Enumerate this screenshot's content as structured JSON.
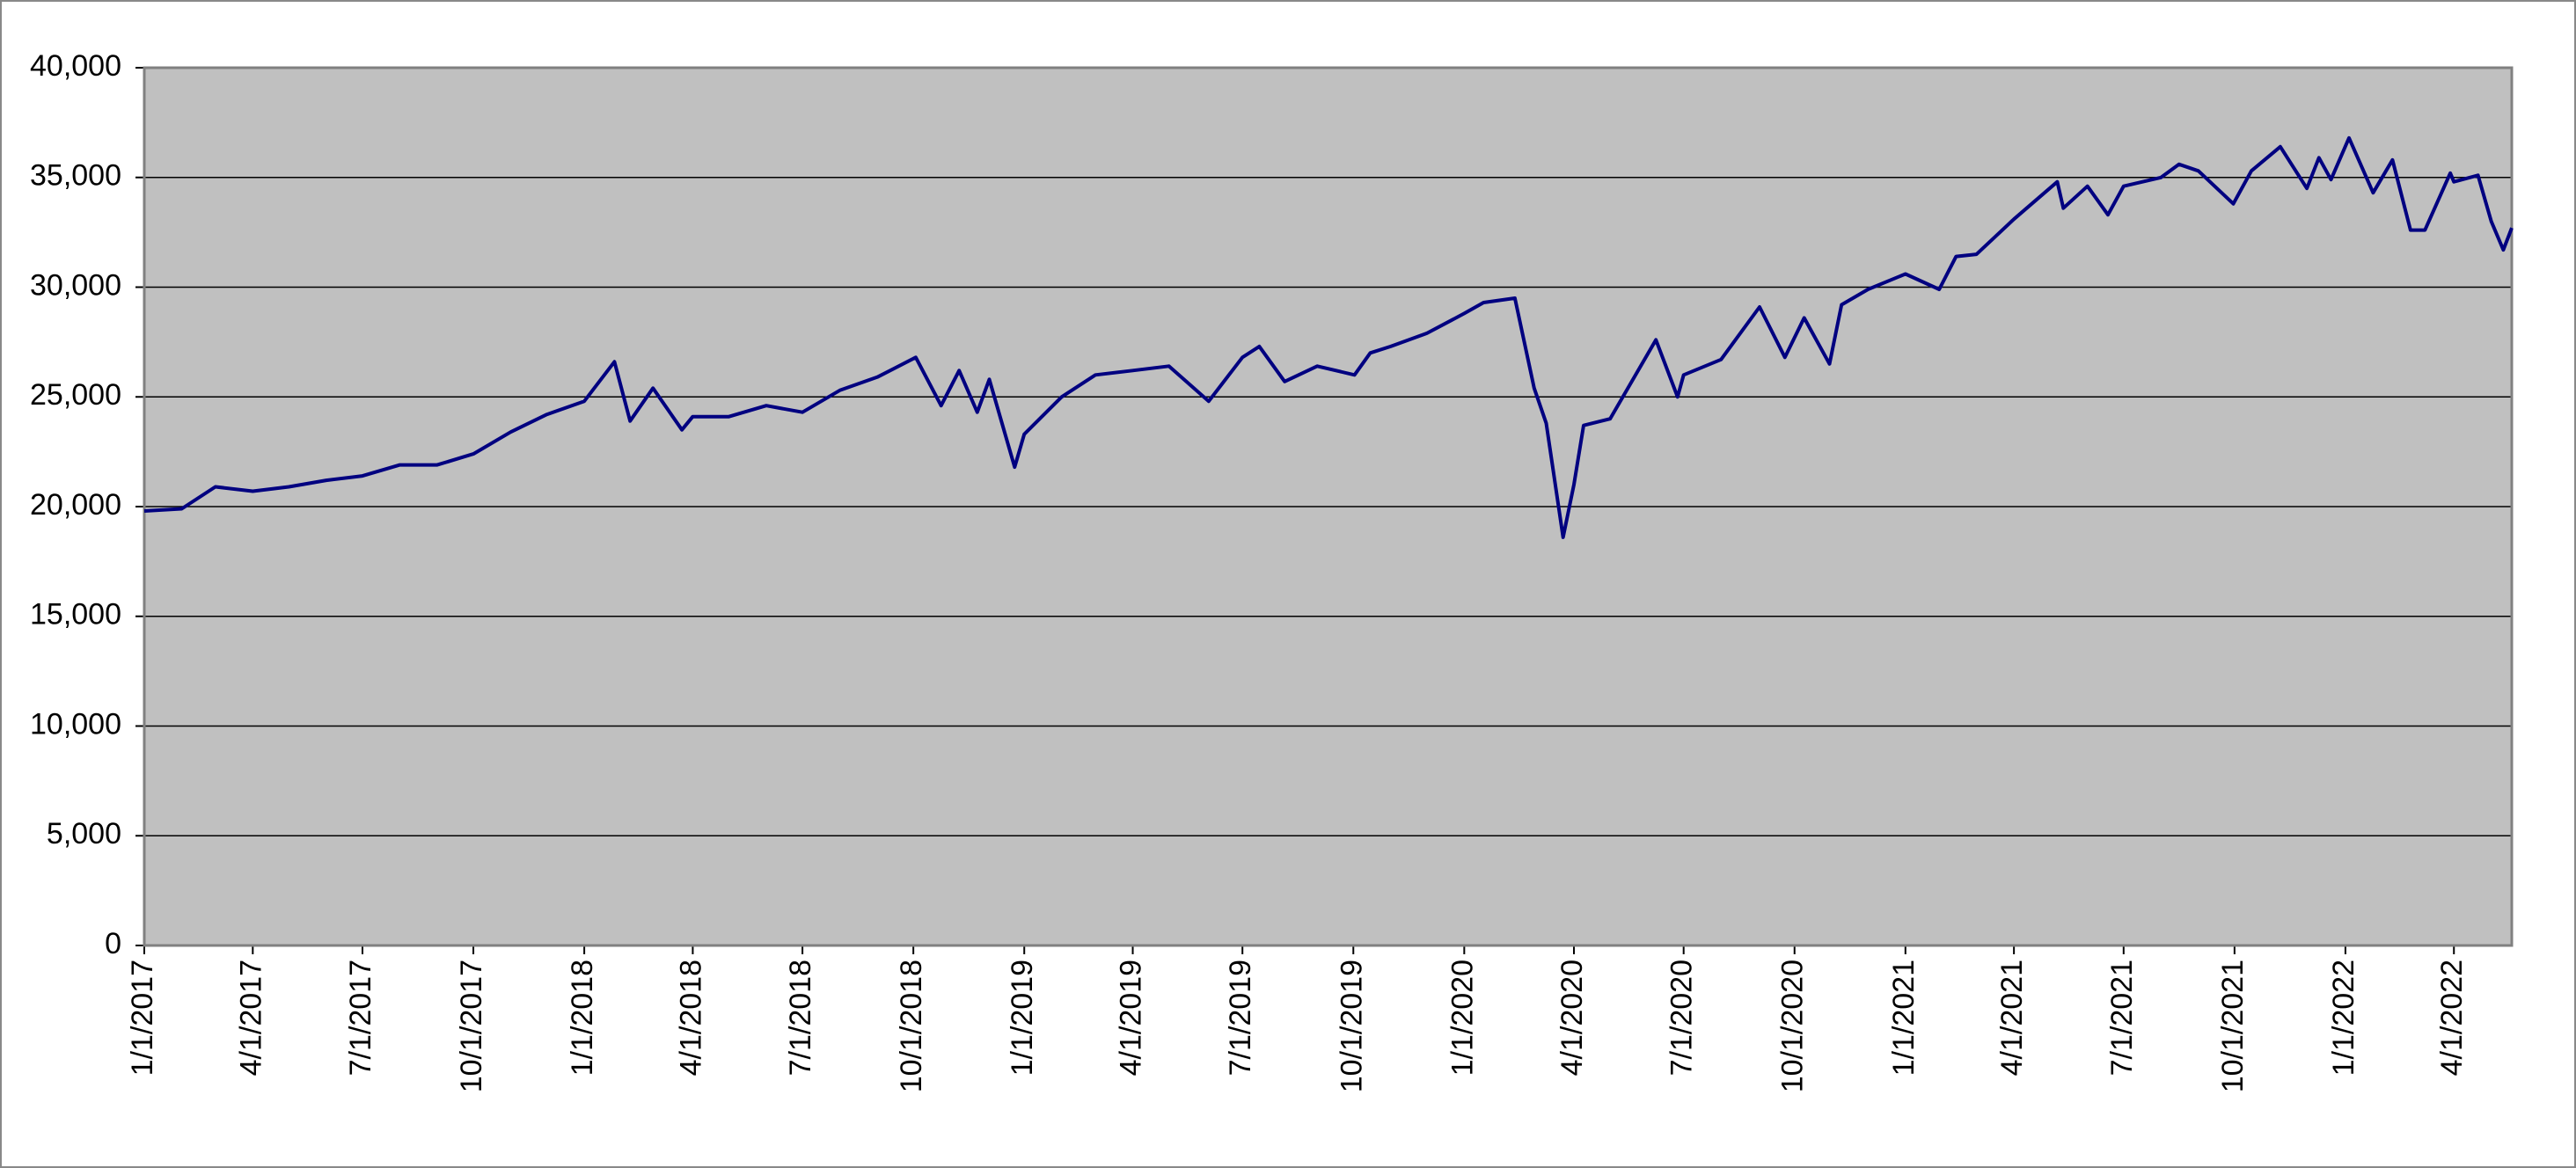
{
  "chart_data": {
    "type": "line",
    "x": [
      "1/1/2017",
      "2/1/2017",
      "3/1/2017",
      "4/1/2017",
      "5/1/2017",
      "6/1/2017",
      "7/1/2017",
      "8/1/2017",
      "9/1/2017",
      "10/1/2017",
      "11/1/2017",
      "12/1/2017",
      "1/1/2018",
      "1/26/2018",
      "2/8/2018",
      "2/27/2018",
      "3/23/2018",
      "4/1/2018",
      "5/1/2018",
      "6/1/2018",
      "7/1/2018",
      "8/1/2018",
      "9/1/2018",
      "10/3/2018",
      "10/24/2018",
      "11/8/2018",
      "11/23/2018",
      "12/3/2018",
      "12/24/2018",
      "1/1/2019",
      "2/1/2019",
      "3/1/2019",
      "4/1/2019",
      "5/1/2019",
      "6/3/2019",
      "7/1/2019",
      "7/15/2019",
      "8/5/2019",
      "9/1/2019",
      "10/2/2019",
      "10/15/2019",
      "11/1/2019",
      "12/1/2019",
      "1/1/2020",
      "1/17/2020",
      "2/12/2020",
      "2/28/2020",
      "3/9/2020",
      "3/23/2020",
      "4/1/2020",
      "4/9/2020",
      "5/1/2020",
      "6/8/2020",
      "6/26/2020",
      "7/1/2020",
      "8/1/2020",
      "9/2/2020",
      "9/23/2020",
      "10/9/2020",
      "10/30/2020",
      "11/9/2020",
      "12/1/2020",
      "1/1/2021",
      "1/29/2021",
      "2/12/2021",
      "3/1/2021",
      "4/1/2021",
      "5/7/2021",
      "5/12/2021",
      "6/1/2021",
      "6/18/2021",
      "7/1/2021",
      "8/1/2021",
      "8/16/2021",
      "9/1/2021",
      "9/30/2021",
      "10/15/2021",
      "11/8/2021",
      "11/30/2021",
      "12/10/2021",
      "12/20/2021",
      "1/4/2022",
      "1/24/2022",
      "2/9/2022",
      "2/24/2022",
      "3/8/2022",
      "3/29/2022",
      "4/1/2022",
      "4/21/2022",
      "5/2/2022",
      "5/12/2022",
      "5/19/2022"
    ],
    "series": [
      {
        "color": "#000080",
        "values": [
          19800,
          19900,
          20900,
          20700,
          20900,
          21200,
          21400,
          21900,
          21900,
          22400,
          23400,
          24200,
          24800,
          26600,
          23900,
          25400,
          23500,
          24100,
          24100,
          24600,
          24300,
          25300,
          25900,
          26800,
          24600,
          26200,
          24300,
          25800,
          21800,
          23300,
          25000,
          26000,
          26200,
          26400,
          24800,
          26800,
          27300,
          25700,
          26400,
          26000,
          27000,
          27300,
          27900,
          28800,
          29300,
          29500,
          25400,
          23800,
          18600,
          21000,
          23700,
          24000,
          27600,
          25000,
          26000,
          26700,
          29100,
          26800,
          28600,
          26500,
          29200,
          29900,
          30600,
          29900,
          31400,
          31500,
          33100,
          34800,
          33600,
          34600,
          33300,
          34600,
          35000,
          35600,
          35300,
          33800,
          35300,
          36400,
          34500,
          35900,
          34900,
          36800,
          34300,
          35800,
          32600,
          32600,
          35200,
          34800,
          35100,
          33000,
          31700,
          32700
        ]
      }
    ],
    "xlim": [
      "1/1/2017",
      "5/19/2022"
    ],
    "xticks": [
      "1/1/2017",
      "4/1/2017",
      "7/1/2017",
      "10/1/2017",
      "1/1/2018",
      "4/1/2018",
      "7/1/2018",
      "10/1/2018",
      "1/1/2019",
      "4/1/2019",
      "7/1/2019",
      "10/1/2019",
      "1/1/2020",
      "4/1/2020",
      "7/1/2020",
      "10/1/2020",
      "1/1/2021",
      "4/1/2021",
      "7/1/2021",
      "10/1/2021",
      "1/1/2022",
      "4/1/2022"
    ],
    "ylim": [
      0,
      40000
    ],
    "yticks": [
      0,
      {
        "value": 5000,
        "label": "5,000"
      },
      {
        "value": 10000,
        "label": "10,000"
      },
      {
        "value": 15000,
        "label": "15,000"
      },
      {
        "value": 20000,
        "label": "20,000"
      },
      {
        "value": 25000,
        "label": "25,000"
      },
      {
        "value": 30000,
        "label": "30,000"
      },
      {
        "value": 35000,
        "label": "35,000"
      },
      {
        "value": 40000,
        "label": "40,000"
      }
    ],
    "grid": true
  }
}
